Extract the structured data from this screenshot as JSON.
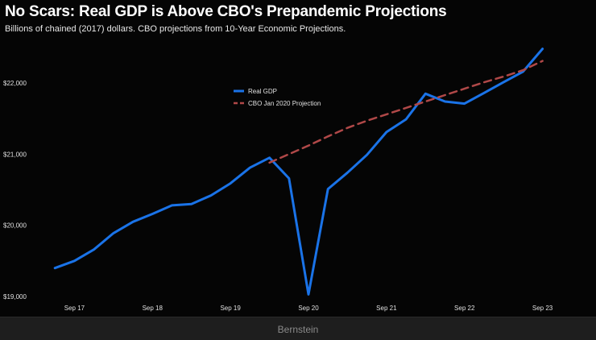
{
  "chart_data": {
    "type": "line",
    "title": "No Scars: Real GDP is Above CBO's Prepandemic Projections",
    "subtitle": "Billions of chained (2017) dollars. CBO projections from 10-Year Economic Projections.",
    "xlabel": "",
    "ylabel": "",
    "ylim": [
      19000,
      22600
    ],
    "yticks": [
      19000,
      20000,
      21000,
      22000
    ],
    "ytick_labels": [
      "$19,000",
      "$20,000",
      "$21,000",
      "$22,000"
    ],
    "xticks": [
      1,
      5,
      9,
      13,
      17,
      21,
      25
    ],
    "xtick_labels": [
      "Sep 17",
      "Sep 18",
      "Sep 19",
      "Sep 20",
      "Sep 21",
      "Sep 22",
      "Sep 23"
    ],
    "xlim": [
      -1,
      27
    ],
    "grid": false,
    "legend_position": "top-center",
    "series": [
      {
        "name": "Real GDP",
        "color": "#1a73e8",
        "style": "solid",
        "x": [
          0,
          1,
          2,
          3,
          4,
          5,
          6,
          7,
          8,
          9,
          10,
          11,
          12,
          13,
          14,
          15,
          16,
          17,
          18,
          19,
          20,
          21,
          22,
          23,
          24,
          25
        ],
        "values": [
          19400,
          19500,
          19660,
          19890,
          20050,
          20160,
          20280,
          20300,
          20420,
          20590,
          20810,
          20950,
          20660,
          19030,
          20510,
          20740,
          20990,
          21310,
          21490,
          21850,
          21740,
          21710,
          21860,
          22010,
          22160,
          22480
        ]
      },
      {
        "name": "CBO Jan 2020 Projection",
        "color": "#b04848",
        "style": "dashed",
        "x": [
          11,
          12,
          13,
          14,
          15,
          16,
          17,
          18,
          19,
          20,
          21,
          22,
          23,
          24,
          25
        ],
        "values": [
          20880,
          21000,
          21120,
          21250,
          21370,
          21470,
          21560,
          21650,
          21740,
          21830,
          21920,
          22010,
          22090,
          22180,
          22310
        ]
      }
    ]
  },
  "footer": {
    "caption": "Bernstein"
  }
}
